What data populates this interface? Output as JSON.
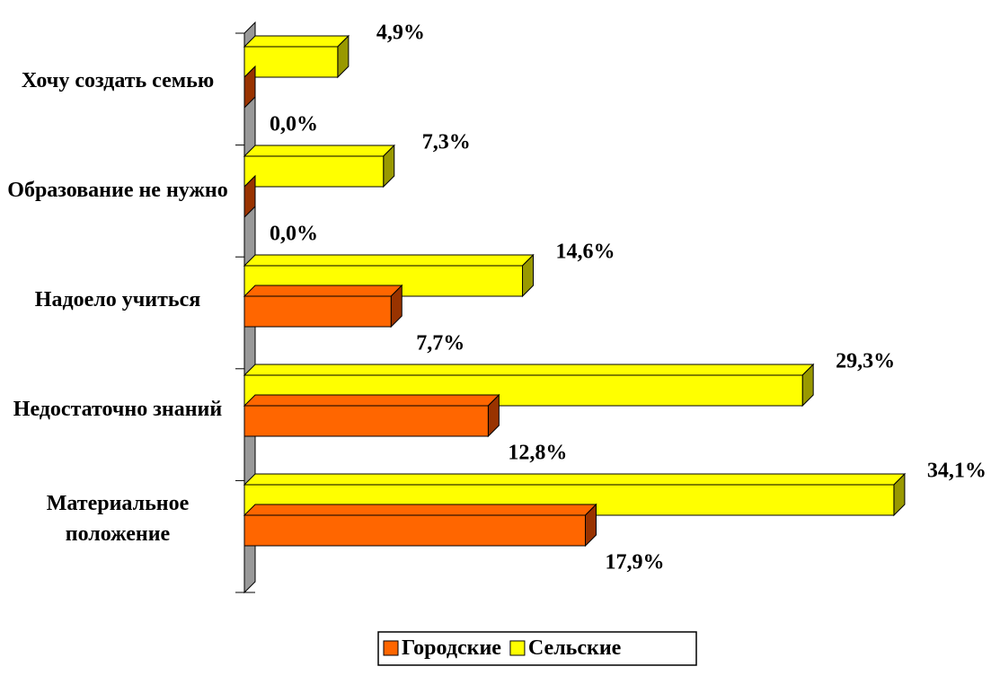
{
  "chart_data": {
    "type": "bar3d_horizontal",
    "categories": [
      "Материальное положение",
      "Недостаточно знаний",
      "Надоело учиться",
      "Образование не нужно",
      "Хочу создать семью"
    ],
    "series": [
      {
        "name": "Городские",
        "color": "#FF6600",
        "values": [
          17.9,
          12.8,
          7.7,
          0.0,
          0.0
        ],
        "value_labels": [
          "17,9%",
          "12,8%",
          "7,7%",
          "0,0%",
          "0,0%"
        ]
      },
      {
        "name": "Сельские",
        "color": "#FFFF00",
        "values": [
          34.1,
          29.3,
          14.6,
          7.3,
          4.9
        ],
        "value_labels": [
          "34,1%",
          "29,3%",
          "14,6%",
          "7,3%",
          "4,9%"
        ]
      }
    ],
    "xlim": [
      0,
      35
    ]
  }
}
